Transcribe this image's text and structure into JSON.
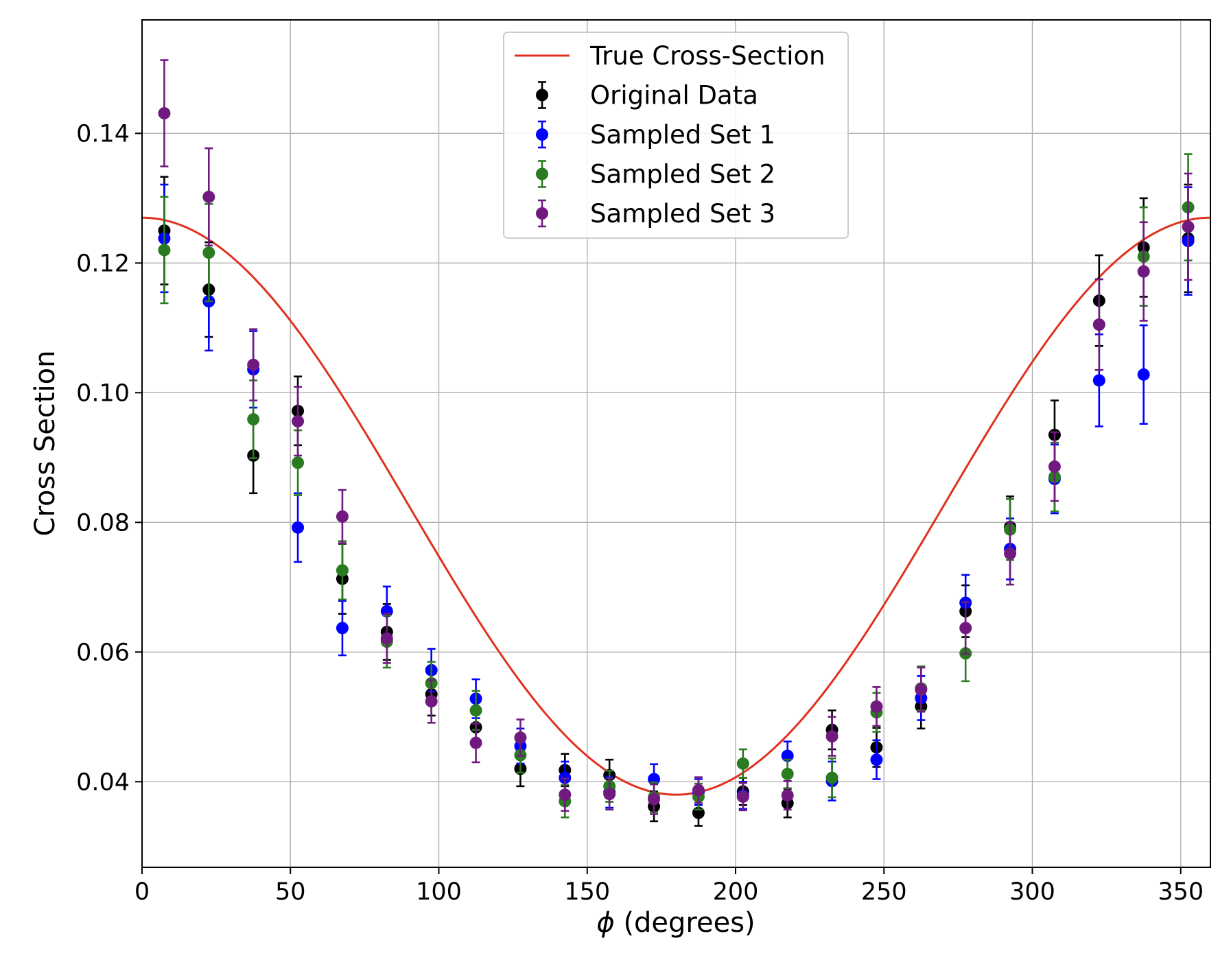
{
  "chart_data": {
    "type": "scatter",
    "title": "",
    "xlabel_symbol": "ϕ",
    "xlabel": "(degrees)",
    "ylabel": "Cross Section",
    "xlim": [
      0,
      360
    ],
    "ylim": [
      0.0268,
      0.1575
    ],
    "grid": true,
    "legend_position": "top-center",
    "xticks": [
      0,
      50,
      100,
      150,
      200,
      250,
      300,
      350
    ],
    "xtick_labels": [
      "0",
      "50",
      "100",
      "150",
      "200",
      "250",
      "300",
      "350"
    ],
    "yticks": [
      0.04,
      0.06,
      0.08,
      0.1,
      0.12,
      0.14
    ],
    "ytick_labels": [
      "0.04",
      "0.06",
      "0.08",
      "0.10",
      "0.12",
      "0.14"
    ],
    "x": [
      7.5,
      22.5,
      37.5,
      52.5,
      67.5,
      82.5,
      97.5,
      112.5,
      127.5,
      142.5,
      157.5,
      172.5,
      187.5,
      202.5,
      217.5,
      232.5,
      247.5,
      262.5,
      277.5,
      292.5,
      307.5,
      322.5,
      337.5,
      352.5
    ],
    "true_curve": {
      "name": "True Cross-Section",
      "color": "#e03020",
      "formula": "a + b*cos(phi)",
      "a": 0.0825,
      "b": 0.0445
    },
    "series": [
      {
        "name": "Original Data",
        "color": "#000000",
        "values": [
          0.125,
          0.1159,
          0.0903,
          0.0972,
          0.0713,
          0.0631,
          0.0535,
          0.0484,
          0.042,
          0.0418,
          0.041,
          0.0362,
          0.0352,
          0.0385,
          0.0367,
          0.048,
          0.0453,
          0.0516,
          0.0663,
          0.0793,
          0.0935,
          0.1142,
          0.1224,
          0.1238
        ],
        "errors": [
          0.0083,
          0.0073,
          0.0058,
          0.0053,
          0.0054,
          0.0043,
          0.0033,
          0.003,
          0.0027,
          0.0025,
          0.0024,
          0.0023,
          0.002,
          0.0021,
          0.0022,
          0.003,
          0.003,
          0.0034,
          0.004,
          0.0047,
          0.0053,
          0.007,
          0.0076,
          0.0083
        ]
      },
      {
        "name": "Sampled Set 1",
        "color": "#0000ff",
        "values": [
          0.1238,
          0.1141,
          0.1036,
          0.0792,
          0.0637,
          0.0663,
          0.0572,
          0.0528,
          0.0455,
          0.0406,
          0.0384,
          0.0404,
          0.0384,
          0.0379,
          0.044,
          0.0401,
          0.0434,
          0.0529,
          0.0676,
          0.0759,
          0.0867,
          0.1019,
          0.1028,
          0.1234
        ],
        "errors": [
          0.0083,
          0.0076,
          0.0059,
          0.0053,
          0.0042,
          0.0038,
          0.0033,
          0.003,
          0.0027,
          0.0025,
          0.0024,
          0.0023,
          0.002,
          0.0021,
          0.0022,
          0.003,
          0.003,
          0.0034,
          0.0043,
          0.0047,
          0.0053,
          0.0071,
          0.0076,
          0.0083
        ]
      },
      {
        "name": "Sampled Set 2",
        "color": "#2a7a1f",
        "values": [
          0.122,
          0.1216,
          0.0959,
          0.0892,
          0.0726,
          0.0616,
          0.0552,
          0.051,
          0.0441,
          0.037,
          0.0393,
          0.0376,
          0.0377,
          0.0428,
          0.0412,
          0.0406,
          0.0507,
          0.0544,
          0.0598,
          0.0789,
          0.087,
          0.1105,
          0.121,
          0.1286
        ],
        "errors": [
          0.0082,
          0.0075,
          0.006,
          0.005,
          0.0045,
          0.004,
          0.0033,
          0.003,
          0.0027,
          0.0025,
          0.0024,
          0.0023,
          0.002,
          0.0022,
          0.0022,
          0.003,
          0.003,
          0.0034,
          0.0043,
          0.0047,
          0.0053,
          0.007,
          0.0076,
          0.0082
        ]
      },
      {
        "name": "Sampled Set 3",
        "color": "#701a80",
        "values": [
          0.1431,
          0.1302,
          0.1043,
          0.0956,
          0.0809,
          0.0621,
          0.0524,
          0.046,
          0.0468,
          0.038,
          0.0381,
          0.0373,
          0.0387,
          0.0377,
          0.0379,
          0.047,
          0.0516,
          0.0542,
          0.0637,
          0.0752,
          0.0886,
          0.1105,
          0.1187,
          0.1256
        ],
        "errors": [
          0.0082,
          0.0075,
          0.0055,
          0.0053,
          0.0041,
          0.0038,
          0.0033,
          0.003,
          0.0028,
          0.0025,
          0.0024,
          0.0023,
          0.002,
          0.0021,
          0.0022,
          0.003,
          0.003,
          0.0034,
          0.004,
          0.0048,
          0.0053,
          0.007,
          0.0076,
          0.0082
        ]
      }
    ]
  }
}
